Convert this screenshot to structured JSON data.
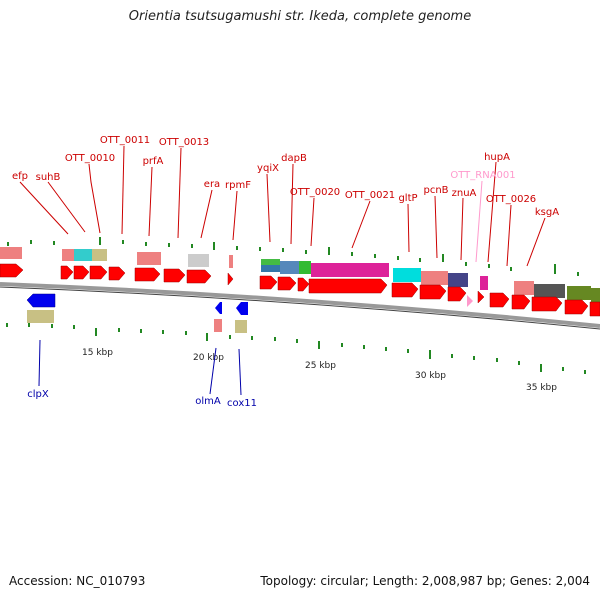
{
  "title": "Orientia tsutsugamushi str. Ikeda, complete genome",
  "footer": {
    "accession": "Accession: NC_010793",
    "topology": "Topology: circular; Length: 2,008,987 bp; Genes: 2,004"
  },
  "colors": {
    "backbone": "#999999",
    "forward_gene": "#ff0000",
    "reverse_gene": "#0000ff",
    "forward_label": "#cc0000",
    "reverse_label": "#0000aa",
    "rna_label": "#ff99cc",
    "tick": "#228822"
  },
  "scale_labels": [
    "15 kbp",
    "20 kbp",
    "25 kbp",
    "30 kbp",
    "35 kbp"
  ],
  "forward_gene_labels": [
    "efp",
    "suhB",
    "OTT_0010",
    "OTT_0011",
    "prfA",
    "OTT_0013",
    "era",
    "rpmF",
    "yqiX",
    "dapB",
    "OTT_0020",
    "OTT_0021",
    "gltP",
    "pcnB",
    "znuA",
    "OTT_RNA001",
    "hupA",
    "OTT_0026",
    "ksgA"
  ],
  "reverse_gene_labels": [
    "clpX",
    "olmA",
    "cox11"
  ]
}
